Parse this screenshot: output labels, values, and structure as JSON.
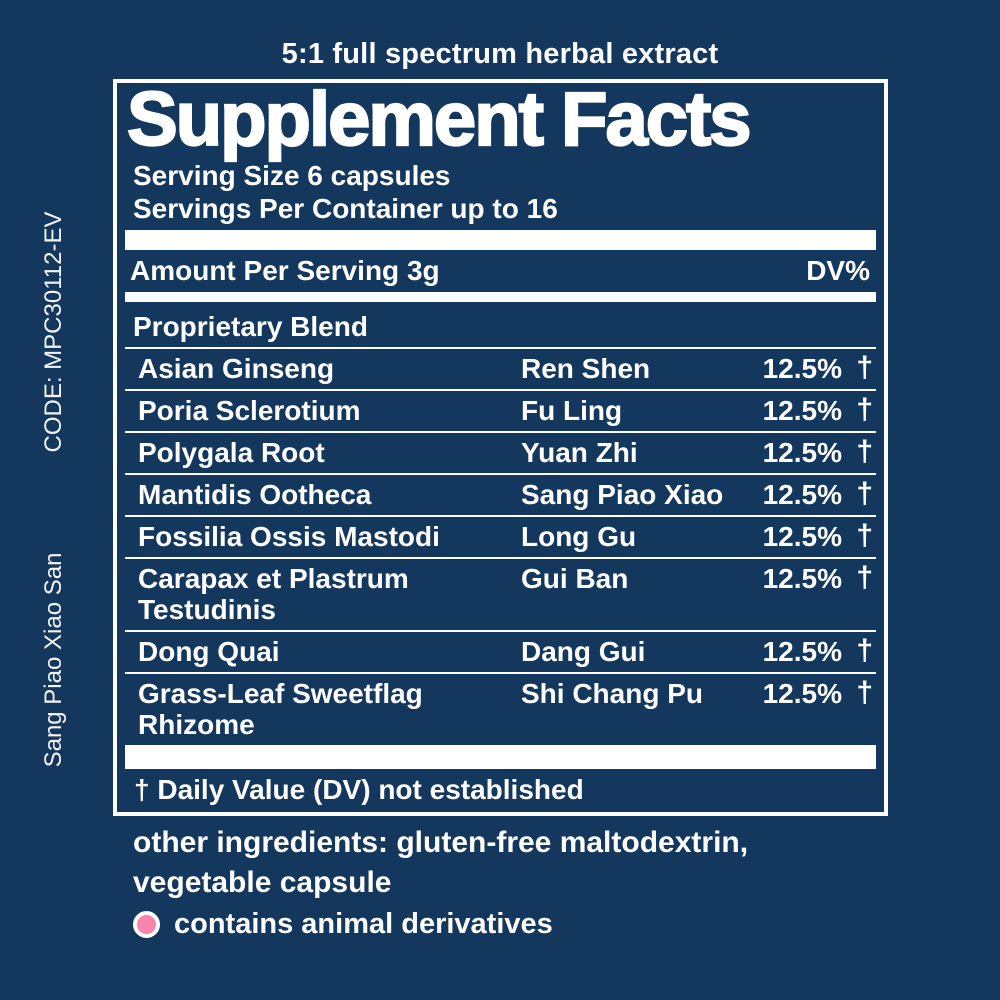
{
  "colors": {
    "background": "#14375e",
    "text": "#ffffff",
    "legend_marker": "#f784ad"
  },
  "side_labels": {
    "code": "CODE: MPC30112-EV",
    "product": "Sang Piao Xiao San"
  },
  "tagline": "5:1 full spectrum herbal extract",
  "panel": {
    "title": "Supplement Facts",
    "serving_size": "Serving Size 6 capsules",
    "servings_per_container": "Servings Per Container up to 16",
    "amount_per_serving": "Amount Per Serving 3g",
    "dv_header": "DV%",
    "blend_title": "Proprietary Blend",
    "footnote": "† Daily Value (DV) not established"
  },
  "table": {
    "rows": [
      {
        "name": "Asian Ginseng",
        "pinyin": "Ren Shen",
        "dv": "12.5%",
        "note": "†"
      },
      {
        "name": "Poria Sclerotium",
        "pinyin": "Fu Ling",
        "dv": "12.5%",
        "note": "†"
      },
      {
        "name": "Polygala Root",
        "pinyin": "Yuan Zhi",
        "dv": "12.5%",
        "note": "†"
      },
      {
        "name": "Mantidis Ootheca",
        "pinyin": "Sang Piao Xiao",
        "dv": "12.5%",
        "note": "†"
      },
      {
        "name": "Fossilia Ossis Mastodi",
        "pinyin": "Long Gu",
        "dv": "12.5%",
        "note": "†"
      },
      {
        "name": "Carapax et Plastrum Testudinis",
        "pinyin": "Gui Ban",
        "dv": "12.5%",
        "note": "†"
      },
      {
        "name": "Dong Quai",
        "pinyin": "Dang Gui",
        "dv": "12.5%",
        "note": "†"
      },
      {
        "name": "Grass-Leaf Sweetflag Rhizome",
        "pinyin": "Shi Chang Pu",
        "dv": "12.5%",
        "note": "†"
      }
    ]
  },
  "below": {
    "other_ingredients_line1": "other ingredients: gluten-free maltodextrin,",
    "other_ingredients_line2": "vegetable capsule",
    "legend_text": "contains animal derivatives"
  }
}
